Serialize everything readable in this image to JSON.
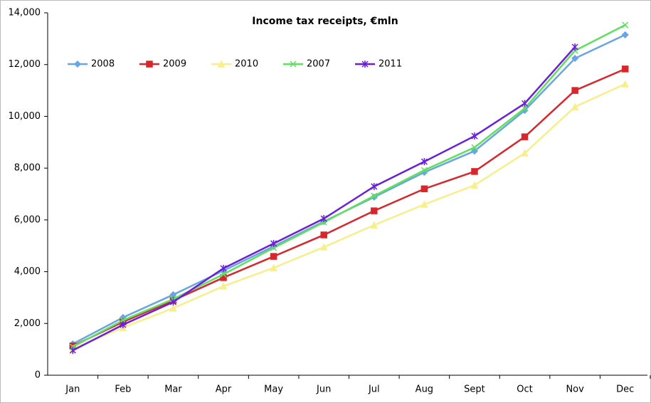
{
  "chart_data": {
    "type": "line",
    "title": "Income tax receipts, €mln",
    "categories": [
      "Jan",
      "Feb",
      "Mar",
      "Apr",
      "May",
      "Jun",
      "Jul",
      "Aug",
      "Sept",
      "Oct",
      "Nov",
      "Dec"
    ],
    "series": [
      {
        "name": "2008",
        "color": "#6aa5e3",
        "marker": "diamond",
        "values": [
          1210,
          2230,
          3110,
          4040,
          4980,
          5940,
          6880,
          7840,
          8660,
          10230,
          12240,
          13150
        ]
      },
      {
        "name": "2009",
        "color": "#d8262c",
        "marker": "square",
        "values": [
          1130,
          2060,
          2890,
          3770,
          4590,
          5420,
          6350,
          7200,
          7870,
          9210,
          11000,
          11830
        ]
      },
      {
        "name": "2010",
        "color": "#f7ef8c",
        "marker": "triangle",
        "values": [
          1020,
          1840,
          2590,
          3440,
          4150,
          4950,
          5800,
          6600,
          7340,
          8580,
          10370,
          11250
        ]
      },
      {
        "name": "2007",
        "color": "#5fe05f",
        "marker": "x",
        "values": [
          1100,
          2120,
          2940,
          3900,
          4920,
          5910,
          6930,
          7920,
          8800,
          10310,
          12540,
          13530
        ]
      },
      {
        "name": "2011",
        "color": "#6a1fe0",
        "marker": "star",
        "values": [
          960,
          1950,
          2830,
          4130,
          5090,
          6050,
          7290,
          8250,
          9240,
          10500,
          12680,
          null
        ]
      }
    ],
    "ylim": [
      0,
      14000
    ],
    "yticks": [
      0,
      {
        "value": 2000,
        "label": "2,000"
      },
      {
        "value": 4000,
        "label": "4,000"
      },
      {
        "value": 6000,
        "label": "6,000"
      },
      {
        "value": 8000,
        "label": "8,000"
      },
      {
        "value": 10000,
        "label": "10,000"
      },
      {
        "value": 12000,
        "label": "12,000"
      },
      {
        "value": 14000,
        "label": "14,000"
      }
    ],
    "grid": false,
    "legend": "top-left"
  }
}
